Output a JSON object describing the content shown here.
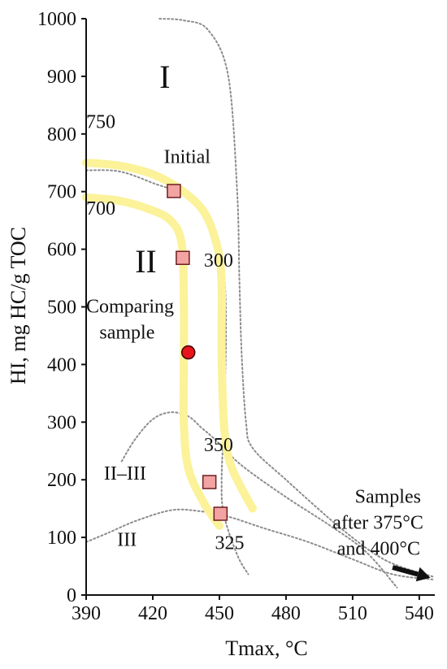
{
  "chart_data": {
    "type": "scatter",
    "title": "",
    "xlabel": "Tmax, °C",
    "ylabel": "HI, mg HC/g TOC",
    "xlim": [
      390,
      547
    ],
    "ylim": [
      0,
      1000
    ],
    "xticks": [
      390,
      420,
      450,
      480,
      510,
      540
    ],
    "yticks": [
      0,
      100,
      200,
      300,
      400,
      500,
      600,
      700,
      800,
      900,
      1000
    ],
    "grid": false,
    "legend": "none",
    "colors": {
      "axis": "#111111",
      "boundary": "#8c8c8c",
      "trend": "#fbf29a",
      "square_fill": "#f4a3a3",
      "square_stroke": "#6b1f1f",
      "circle_fill": "#e8141c",
      "circle_stroke": "#3a0000",
      "arrow": "#111111"
    },
    "square_points": [
      {
        "x": 429.5,
        "y": 701
      },
      {
        "x": 433.5,
        "y": 585
      },
      {
        "x": 445.5,
        "y": 196
      },
      {
        "x": 450.5,
        "y": 141
      }
    ],
    "circle_points": [
      {
        "x": 436,
        "y": 421
      }
    ],
    "boundaries": [
      [
        [
          423,
          1000
        ],
        [
          434,
          997
        ],
        [
          445,
          980
        ],
        [
          454,
          900
        ],
        [
          458,
          700
        ],
        [
          459,
          550
        ],
        [
          460,
          420
        ],
        [
          462,
          300
        ],
        [
          465,
          255
        ],
        [
          480,
          200
        ],
        [
          505,
          115
        ],
        [
          525,
          60
        ],
        [
          546,
          32
        ]
      ],
      [
        [
          390,
          737
        ],
        [
          405,
          735
        ],
        [
          420,
          715
        ],
        [
          436,
          690
        ],
        [
          447,
          640
        ],
        [
          452,
          560
        ],
        [
          453,
          450
        ],
        [
          452,
          300
        ],
        [
          451,
          200
        ],
        [
          452,
          140
        ],
        [
          458,
          70
        ],
        [
          463,
          36
        ]
      ],
      [
        [
          406,
          232
        ],
        [
          412,
          270
        ],
        [
          420,
          305
        ],
        [
          428,
          317
        ],
        [
          436,
          310
        ],
        [
          442,
          290
        ],
        [
          448,
          270
        ],
        [
          460,
          225
        ],
        [
          480,
          170
        ],
        [
          500,
          120
        ],
        [
          516,
          75
        ],
        [
          530,
          13
        ]
      ],
      [
        [
          390,
          92
        ],
        [
          400,
          108
        ],
        [
          412,
          128
        ],
        [
          428,
          147
        ],
        [
          440,
          146
        ],
        [
          454,
          136
        ],
        [
          470,
          116
        ],
        [
          490,
          92
        ],
        [
          510,
          62
        ],
        [
          528,
          36
        ],
        [
          546,
          27
        ]
      ]
    ],
    "trend_lines": [
      [
        [
          390,
          750
        ],
        [
          405,
          745
        ],
        [
          420,
          730
        ],
        [
          432,
          705
        ],
        [
          443,
          665
        ],
        [
          449,
          605
        ],
        [
          451,
          540
        ],
        [
          451,
          420
        ],
        [
          452,
          300
        ],
        [
          454,
          240
        ],
        [
          458,
          200
        ],
        [
          465,
          150
        ]
      ],
      [
        [
          390,
          690
        ],
        [
          405,
          684
        ],
        [
          418,
          670
        ],
        [
          428,
          650
        ],
        [
          433,
          610
        ],
        [
          434,
          510
        ],
        [
          434,
          400
        ],
        [
          434,
          300
        ],
        [
          436,
          220
        ],
        [
          443,
          160
        ],
        [
          450,
          120
        ]
      ]
    ],
    "arrow": {
      "from": [
        528,
        48
      ],
      "to": [
        545,
        30
      ]
    },
    "annotations": {
      "type_i": {
        "text": "I",
        "x": 423,
        "y": 880
      },
      "type_ii": {
        "text": "II",
        "x": 412,
        "y": 560
      },
      "type_ii_iii": {
        "text": "II–III",
        "x": 398,
        "y": 200
      },
      "type_iii": {
        "text": "III",
        "x": 404,
        "y": 85
      },
      "label_750": {
        "text": "750",
        "x": 390,
        "y": 810
      },
      "label_700": {
        "text": "700",
        "x": 390,
        "y": 660
      },
      "label_initial": {
        "text": "Initial",
        "x": 425,
        "y": 750
      },
      "label_300": {
        "text": "300",
        "x": 443,
        "y": 570
      },
      "label_350": {
        "text": "350",
        "x": 443,
        "y": 250
      },
      "label_325": {
        "text": "325",
        "x": 448,
        "y": 80
      },
      "comparing_1": {
        "text": "Comparing",
        "x": 390,
        "y": 490
      },
      "comparing_2": {
        "text": "sample",
        "x": 396,
        "y": 445
      },
      "samples_1": {
        "text": "Samples",
        "x": 511,
        "y": 160
      },
      "samples_2": {
        "text": "after 375°C",
        "x": 501,
        "y": 115
      },
      "samples_3": {
        "text": "and 400°C",
        "x": 503,
        "y": 70
      }
    }
  }
}
